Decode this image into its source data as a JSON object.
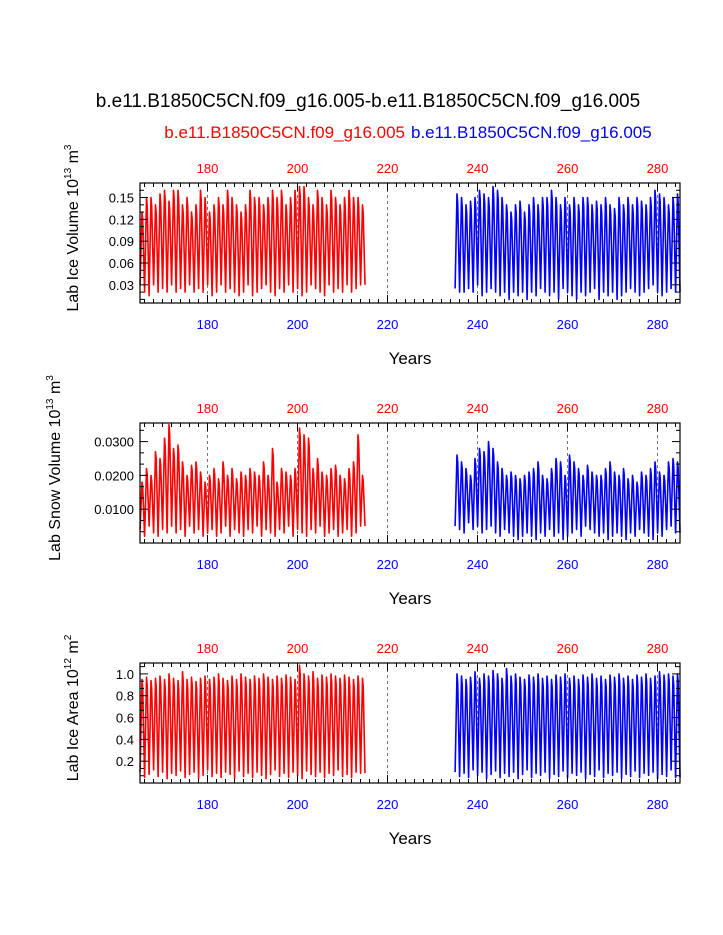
{
  "title": "b.e11.B1850C5CN.f09_g16.005-b.e11.B1850C5CN.f09_g16.005",
  "subtitle_left": "b.e11.B1850C5CN.f09_g16.005",
  "subtitle_right": "b.e11.B1850C5CN.f09_g16.005",
  "colors": {
    "series1": "#ff0000",
    "series2": "#0000ff",
    "axis": "#000000",
    "grid": "#000000"
  },
  "chart_data": [
    {
      "type": "line",
      "ylabel_pre": "Lab Ice Volume 10",
      "ylabel_exp1": "13",
      "ylabel_unit": " m",
      "ylabel_exp2": "3",
      "xlabel": "Years",
      "xlim": [
        165,
        285
      ],
      "ylim": [
        0.005,
        0.17
      ],
      "yticks": [
        0.03,
        0.06,
        0.09,
        0.12,
        0.15
      ],
      "ytick_labels": [
        "0.03",
        "0.06",
        "0.09",
        "0.12",
        "0.15"
      ],
      "xticks": [
        180,
        200,
        220,
        240,
        260,
        280
      ],
      "xtick_labels": [
        "180",
        "200",
        "220",
        "240",
        "260",
        "280"
      ],
      "top_tick_colors": [
        "red",
        "red",
        "red",
        "red",
        "red",
        "red"
      ],
      "bottom_tick_colors": [
        "blue",
        "blue",
        "blue",
        "blue",
        "blue",
        "blue"
      ],
      "grid_x": [
        180,
        200,
        220,
        240,
        260,
        280
      ],
      "series": [
        {
          "name": "b.e11.B1850C5CN.f09_g16.005",
          "color": "red",
          "x_start": 165,
          "x_end": 215,
          "peaks": [
            0.13,
            0.15,
            0.15,
            0.14,
            0.155,
            0.16,
            0.145,
            0.16,
            0.16,
            0.14,
            0.15,
            0.13,
            0.14,
            0.16,
            0.15,
            0.13,
            0.14,
            0.15,
            0.14,
            0.16,
            0.15,
            0.14,
            0.13,
            0.14,
            0.16,
            0.15,
            0.15,
            0.14,
            0.15,
            0.16,
            0.15,
            0.16,
            0.14,
            0.15,
            0.16,
            0.165,
            0.165,
            0.15,
            0.14,
            0.16,
            0.15,
            0.14,
            0.16,
            0.15,
            0.14,
            0.15,
            0.16,
            0.15,
            0.15,
            0.14
          ],
          "troughs": [
            0.03,
            0.02,
            0.015,
            0.03,
            0.02,
            0.025,
            0.02,
            0.03,
            0.02,
            0.025,
            0.02,
            0.03,
            0.02,
            0.025,
            0.02,
            0.03,
            0.015,
            0.02,
            0.03,
            0.02,
            0.025,
            0.02,
            0.015,
            0.02,
            0.03,
            0.015,
            0.02,
            0.025,
            0.03,
            0.02,
            0.015,
            0.025,
            0.02,
            0.03,
            0.02,
            0.025,
            0.015,
            0.02,
            0.03,
            0.025,
            0.02,
            0.015,
            0.03,
            0.02,
            0.025,
            0.02,
            0.03,
            0.02,
            0.025,
            0.03
          ]
        },
        {
          "name": "b.e11.B1850C5CN.f09_g16.005",
          "color": "blue",
          "x_start": 235,
          "x_end": 285,
          "peaks": [
            0.155,
            0.15,
            0.14,
            0.145,
            0.15,
            0.16,
            0.155,
            0.15,
            0.165,
            0.16,
            0.15,
            0.14,
            0.13,
            0.14,
            0.145,
            0.13,
            0.14,
            0.15,
            0.14,
            0.15,
            0.15,
            0.16,
            0.15,
            0.14,
            0.15,
            0.14,
            0.15,
            0.14,
            0.15,
            0.15,
            0.14,
            0.145,
            0.14,
            0.15,
            0.14,
            0.135,
            0.15,
            0.14,
            0.15,
            0.14,
            0.15,
            0.145,
            0.14,
            0.15,
            0.16,
            0.155,
            0.15,
            0.14,
            0.15,
            0.155
          ],
          "troughs": [
            0.025,
            0.02,
            0.02,
            0.025,
            0.02,
            0.03,
            0.015,
            0.02,
            0.025,
            0.02,
            0.015,
            0.02,
            0.01,
            0.02,
            0.015,
            0.02,
            0.01,
            0.02,
            0.015,
            0.025,
            0.02,
            0.015,
            0.02,
            0.01,
            0.025,
            0.02,
            0.015,
            0.01,
            0.02,
            0.015,
            0.02,
            0.025,
            0.01,
            0.02,
            0.015,
            0.02,
            0.01,
            0.015,
            0.02,
            0.025,
            0.02,
            0.015,
            0.02,
            0.025,
            0.03,
            0.02,
            0.015,
            0.02,
            0.025,
            0.02
          ]
        }
      ]
    },
    {
      "type": "line",
      "ylabel_pre": "Lab Snow Volume 10",
      "ylabel_exp1": "13",
      "ylabel_unit": " m",
      "ylabel_exp2": "3",
      "xlabel": "Years",
      "xlim": [
        165,
        285
      ],
      "ylim": [
        0.0,
        0.0355
      ],
      "yticks": [
        0.01,
        0.02,
        0.03
      ],
      "ytick_labels": [
        "0.0100",
        "0.0200",
        "0.0300"
      ],
      "xticks": [
        180,
        200,
        220,
        240,
        260,
        280
      ],
      "xtick_labels": [
        "180",
        "200",
        "220",
        "240",
        "260",
        "280"
      ],
      "top_tick_colors": [
        "red",
        "red",
        "red",
        "red",
        "red",
        "red"
      ],
      "bottom_tick_colors": [
        "blue",
        "blue",
        "blue",
        "blue",
        "blue",
        "blue"
      ],
      "grid_x": [
        180,
        200,
        220,
        240,
        260,
        280
      ],
      "series": [
        {
          "name": "b.e11.B1850C5CN.f09_g16.005",
          "color": "red",
          "x_start": 165,
          "x_end": 215,
          "peaks": [
            0.018,
            0.022,
            0.02,
            0.027,
            0.025,
            0.031,
            0.035,
            0.028,
            0.029,
            0.024,
            0.02,
            0.023,
            0.024,
            0.021,
            0.018,
            0.02,
            0.022,
            0.019,
            0.024,
            0.02,
            0.022,
            0.019,
            0.021,
            0.02,
            0.022,
            0.021,
            0.02,
            0.024,
            0.02,
            0.028,
            0.018,
            0.022,
            0.021,
            0.02,
            0.022,
            0.034,
            0.032,
            0.031,
            0.022,
            0.025,
            0.021,
            0.02,
            0.022,
            0.023,
            0.02,
            0.019,
            0.022,
            0.024,
            0.032,
            0.02
          ],
          "troughs": [
            0.004,
            0.002,
            0.005,
            0.003,
            0.002,
            0.004,
            0.003,
            0.005,
            0.003,
            0.004,
            0.002,
            0.005,
            0.003,
            0.004,
            0.002,
            0.003,
            0.004,
            0.002,
            0.003,
            0.005,
            0.002,
            0.004,
            0.003,
            0.002,
            0.004,
            0.003,
            0.005,
            0.002,
            0.004,
            0.003,
            0.002,
            0.004,
            0.003,
            0.005,
            0.002,
            0.004,
            0.003,
            0.002,
            0.004,
            0.003,
            0.005,
            0.002,
            0.003,
            0.004,
            0.002,
            0.003,
            0.004,
            0.002,
            0.003,
            0.005
          ]
        },
        {
          "name": "b.e11.B1850C5CN.f09_g16.005",
          "color": "blue",
          "x_start": 235,
          "x_end": 285,
          "peaks": [
            0.026,
            0.024,
            0.022,
            0.02,
            0.025,
            0.028,
            0.027,
            0.03,
            0.028,
            0.024,
            0.022,
            0.02,
            0.021,
            0.02,
            0.019,
            0.02,
            0.021,
            0.022,
            0.024,
            0.02,
            0.019,
            0.022,
            0.025,
            0.024,
            0.02,
            0.026,
            0.024,
            0.022,
            0.02,
            0.023,
            0.021,
            0.02,
            0.02,
            0.022,
            0.024,
            0.021,
            0.02,
            0.022,
            0.019,
            0.02,
            0.018,
            0.021,
            0.02,
            0.022,
            0.024,
            0.021,
            0.02,
            0.024,
            0.025,
            0.024
          ],
          "troughs": [
            0.005,
            0.004,
            0.003,
            0.006,
            0.004,
            0.005,
            0.003,
            0.004,
            0.005,
            0.003,
            0.002,
            0.004,
            0.003,
            0.002,
            0.001,
            0.002,
            0.003,
            0.002,
            0.001,
            0.003,
            0.002,
            0.004,
            0.002,
            0.003,
            0.001,
            0.002,
            0.003,
            0.004,
            0.002,
            0.005,
            0.004,
            0.003,
            0.002,
            0.003,
            0.001,
            0.002,
            0.003,
            0.002,
            0.001,
            0.003,
            0.002,
            0.004,
            0.003,
            0.002,
            0.001,
            0.003,
            0.002,
            0.004,
            0.005,
            0.003
          ]
        }
      ]
    },
    {
      "type": "line",
      "ylabel_pre": "Lab Ice Area 10",
      "ylabel_exp1": "12",
      "ylabel_unit": " m",
      "ylabel_exp2": "2",
      "xlabel": "Years",
      "xlim": [
        165,
        285
      ],
      "ylim": [
        0.0,
        1.1
      ],
      "yticks": [
        0.2,
        0.4,
        0.6,
        0.8,
        1.0
      ],
      "ytick_labels": [
        "0.2",
        "0.4",
        "0.6",
        "0.8",
        "1.0"
      ],
      "xticks": [
        180,
        200,
        220,
        240,
        260,
        280
      ],
      "xtick_labels": [
        "180",
        "200",
        "220",
        "240",
        "260",
        "280"
      ],
      "top_tick_colors": [
        "red",
        "red",
        "red",
        "red",
        "red",
        "red"
      ],
      "bottom_tick_colors": [
        "blue",
        "blue",
        "blue",
        "blue",
        "blue",
        "blue"
      ],
      "grid_x": [
        180,
        200,
        220,
        240,
        260,
        280
      ],
      "series": [
        {
          "name": "b.e11.B1850C5CN.f09_g16.005",
          "color": "red",
          "x_start": 165,
          "x_end": 215,
          "peaks": [
            0.95,
            0.97,
            0.94,
            0.96,
            0.98,
            0.95,
            1.0,
            0.96,
            0.94,
            1.02,
            0.95,
            0.97,
            0.93,
            0.96,
            0.98,
            0.95,
            0.97,
            1.0,
            0.96,
            0.94,
            0.98,
            0.95,
            1.0,
            0.97,
            0.95,
            0.98,
            0.96,
            1.0,
            0.97,
            0.95,
            0.98,
            0.96,
            0.99,
            0.97,
            0.95,
            1.08,
            1.0,
            0.98,
            1.02,
            0.96,
            0.99,
            0.97,
            1.0,
            0.98,
            0.96,
            0.99,
            0.97,
            0.95,
            0.98,
            0.96
          ],
          "troughs": [
            0.1,
            0.05,
            0.08,
            0.12,
            0.06,
            0.1,
            0.04,
            0.09,
            0.07,
            0.11,
            0.05,
            0.08,
            0.1,
            0.04,
            0.07,
            0.12,
            0.06,
            0.09,
            0.05,
            0.1,
            0.08,
            0.04,
            0.11,
            0.06,
            0.09,
            0.05,
            0.1,
            0.07,
            0.04,
            0.08,
            0.12,
            0.06,
            0.09,
            0.05,
            0.1,
            0.07,
            0.04,
            0.11,
            0.08,
            0.06,
            0.1,
            0.05,
            0.09,
            0.07,
            0.12,
            0.06,
            0.08,
            0.05,
            0.1,
            0.09
          ]
        },
        {
          "name": "b.e11.B1850C5CN.f09_g16.005",
          "color": "blue",
          "x_start": 235,
          "x_end": 285,
          "peaks": [
            1.0,
            0.98,
            0.95,
            0.97,
            1.02,
            0.96,
            1.0,
            0.98,
            1.03,
            1.0,
            0.96,
            1.05,
            0.98,
            1.0,
            0.97,
            0.95,
            0.99,
            0.97,
            1.0,
            0.96,
            0.98,
            0.95,
            0.99,
            0.97,
            1.0,
            0.96,
            0.98,
            0.95,
            0.99,
            0.97,
            1.0,
            0.96,
            0.98,
            0.95,
            0.99,
            0.97,
            1.0,
            0.96,
            0.98,
            0.95,
            0.99,
            0.97,
            1.0,
            0.96,
            0.98,
            1.02,
            0.99,
            1.0,
            0.98,
            1.0
          ],
          "troughs": [
            0.1,
            0.06,
            0.09,
            0.05,
            0.12,
            0.07,
            0.1,
            0.04,
            0.08,
            0.11,
            0.05,
            0.09,
            0.06,
            0.1,
            0.04,
            0.08,
            0.12,
            0.05,
            0.09,
            0.07,
            0.1,
            0.04,
            0.08,
            0.06,
            0.11,
            0.05,
            0.09,
            0.07,
            0.1,
            0.04,
            0.08,
            0.06,
            0.12,
            0.05,
            0.09,
            0.07,
            0.1,
            0.04,
            0.08,
            0.06,
            0.11,
            0.05,
            0.09,
            0.07,
            0.1,
            0.04,
            0.08,
            0.06,
            0.12,
            0.05
          ]
        }
      ]
    }
  ]
}
